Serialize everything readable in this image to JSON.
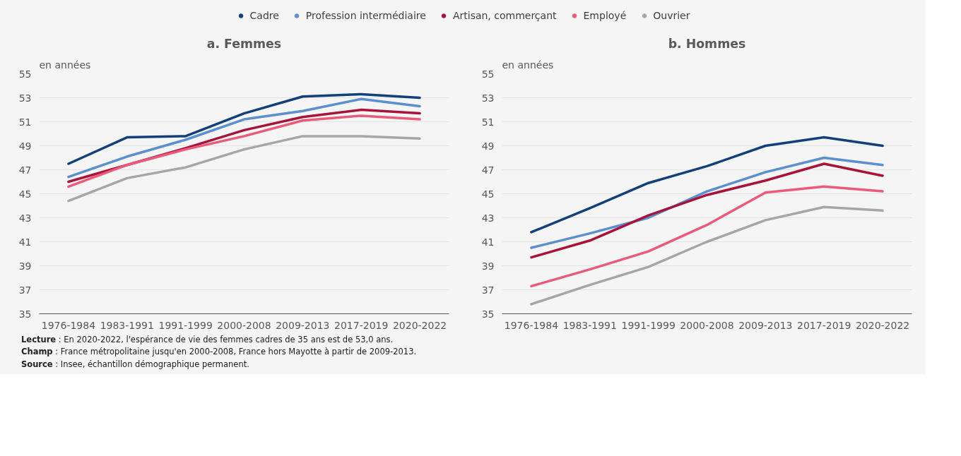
{
  "chart_data": [
    {
      "type": "line",
      "title": "a. Femmes",
      "ylabel": "en années",
      "legend": "top",
      "grid": "y",
      "categories": [
        "1976-1984",
        "1983-1991",
        "1991-1999",
        "2000-2008",
        "2009-2013",
        "2017-2019",
        "2020-2022"
      ],
      "ylim": [
        35,
        55
      ],
      "yticks": [
        35,
        37,
        39,
        41,
        43,
        45,
        47,
        49,
        51,
        53,
        55
      ],
      "series": [
        {
          "name": "Cadre",
          "color": "#14407a",
          "values": [
            47.5,
            49.7,
            49.8,
            51.7,
            53.1,
            53.3,
            53.0
          ]
        },
        {
          "name": "Profession intermédiaire",
          "color": "#5b8fd0",
          "values": [
            46.4,
            48.1,
            49.5,
            51.2,
            51.9,
            52.9,
            52.3
          ]
        },
        {
          "name": "Artisan, commerçant",
          "color": "#a8133a",
          "values": [
            46.0,
            47.4,
            48.8,
            50.3,
            51.4,
            52.0,
            51.7
          ]
        },
        {
          "name": "Employé",
          "color": "#ea5b7b",
          "values": [
            45.6,
            47.4,
            48.7,
            49.8,
            51.1,
            51.5,
            51.2
          ]
        },
        {
          "name": "Ouvrier",
          "color": "#a6a6a6",
          "values": [
            44.4,
            46.3,
            47.2,
            48.7,
            49.8,
            49.8,
            49.6
          ]
        }
      ]
    },
    {
      "type": "line",
      "title": "b. Hommes",
      "ylabel": "en années",
      "grid": "y",
      "categories": [
        "1976-1984",
        "1983-1991",
        "1991-1999",
        "2000-2008",
        "2009-2013",
        "2017-2019",
        "2020-2022"
      ],
      "ylim": [
        35,
        55
      ],
      "yticks": [
        35,
        37,
        39,
        41,
        43,
        45,
        47,
        49,
        51,
        53,
        55
      ],
      "series": [
        {
          "color": "#14407a",
          "values": [
            41.8,
            43.8,
            45.9,
            47.3,
            49.0,
            49.7,
            49.0
          ]
        },
        {
          "color": "#5b8fd0",
          "values": [
            40.5,
            41.7,
            43.0,
            45.2,
            46.8,
            48.0,
            47.4
          ]
        },
        {
          "color": "#a8133a",
          "values": [
            39.7,
            41.1,
            43.2,
            44.9,
            46.1,
            47.5,
            46.5
          ]
        },
        {
          "color": "#ea5b7b",
          "values": [
            37.3,
            38.7,
            40.2,
            42.4,
            45.1,
            45.6,
            45.2
          ]
        },
        {
          "color": "#a6a6a6",
          "values": [
            35.8,
            37.4,
            38.9,
            41.0,
            42.8,
            43.9,
            43.6
          ]
        }
      ],
      "annotations": [
        "Lecture : En 2020-2022, l'espérance de vie des femmes cadres de 35 ans est de 53,0 ans.",
        "Champ : France métropolitaine jusqu'en 2000-2008, France hors Mayotte à partir de 2009-2013.",
        "Source : Insee, échantillon démographique permanent."
      ]
    }
  ]
}
